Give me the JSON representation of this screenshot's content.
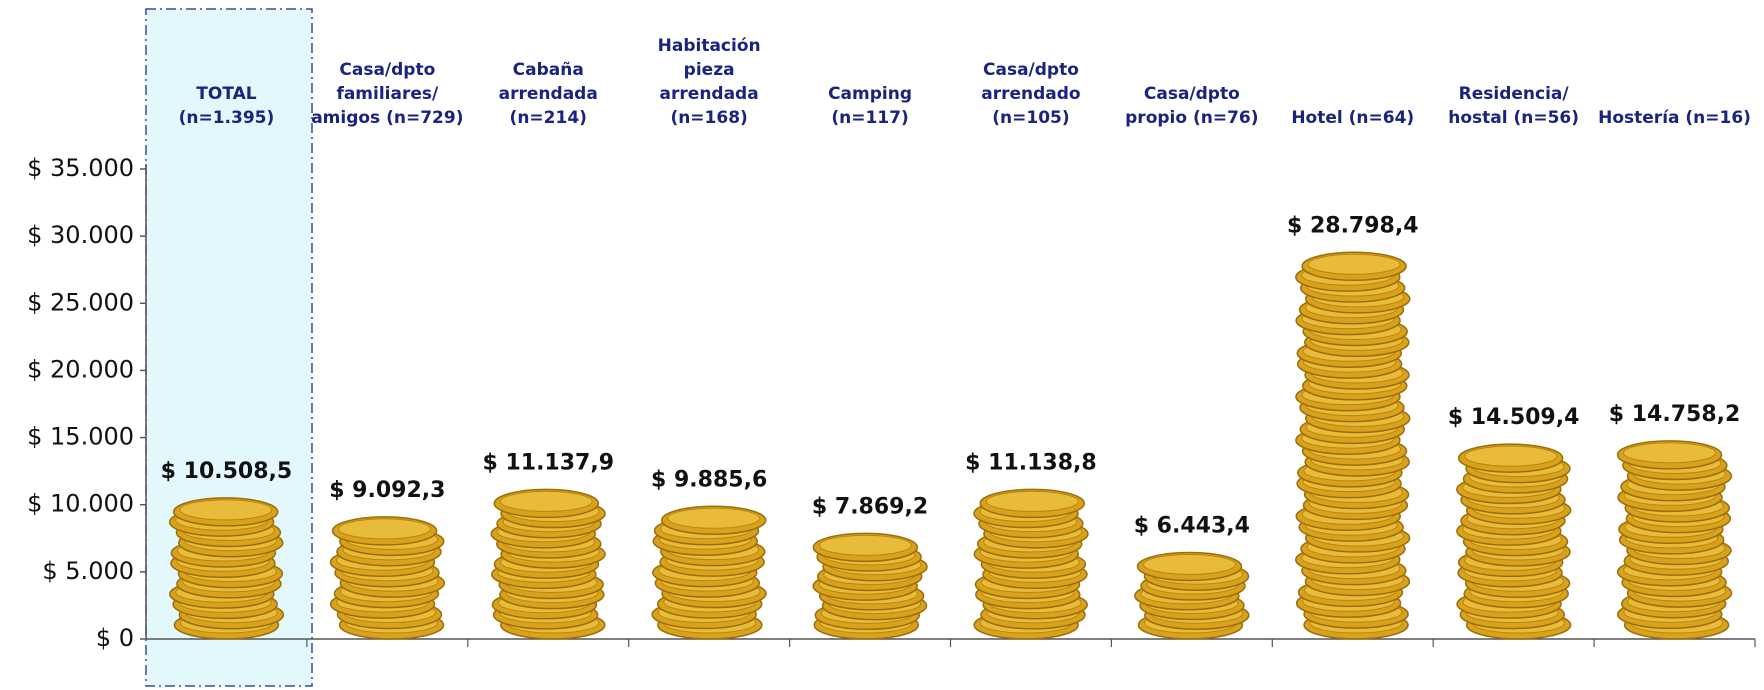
{
  "chart_data": {
    "type": "bar",
    "categories": [
      "TOTAL\n(n=1.395)",
      "Casa/dpto\nfamiliares/\namigos  (n=729)",
      "Cabaña\narrendada\n(n=214)",
      "Habitación\npieza\narrendada\n(n=168)",
      "Camping\n(n=117)",
      "Casa/dpto\narrendado\n(n=105)",
      "Casa/dpto\npropio (n=76)",
      "Hotel (n=64)",
      "Residencia/\nhostal (n=56)",
      "Hostería (n=16)"
    ],
    "values": [
      10508.5,
      9092.3,
      11137.9,
      9885.6,
      7869.2,
      11138.8,
      6443.4,
      28798.4,
      14509.4,
      14758.2
    ],
    "value_labels": [
      "$ 10.508,5",
      "$ 9.092,3",
      "$ 11.137,9",
      "$ 9.885,6",
      "$ 7.869,2",
      "$ 11.138,8",
      "$ 6.443,4",
      "$ 28.798,4",
      "$ 14.509,4",
      "$ 14.758,2"
    ],
    "color": "#d9a21c",
    "ylim": [
      0,
      35000
    ],
    "yticks": [
      {
        "value": 0,
        "label": "$ 0"
      },
      {
        "value": 5000,
        "label": "$ 5.000"
      },
      {
        "value": 10000,
        "label": "$ 10.000"
      },
      {
        "value": 15000,
        "label": "$ 15.000"
      },
      {
        "value": 20000,
        "label": "$ 20.000"
      },
      {
        "value": 25000,
        "label": "$ 25.000"
      },
      {
        "value": 30000,
        "label": "$ 30.000"
      },
      {
        "value": 35000,
        "label": "$ 35.000"
      }
    ]
  }
}
